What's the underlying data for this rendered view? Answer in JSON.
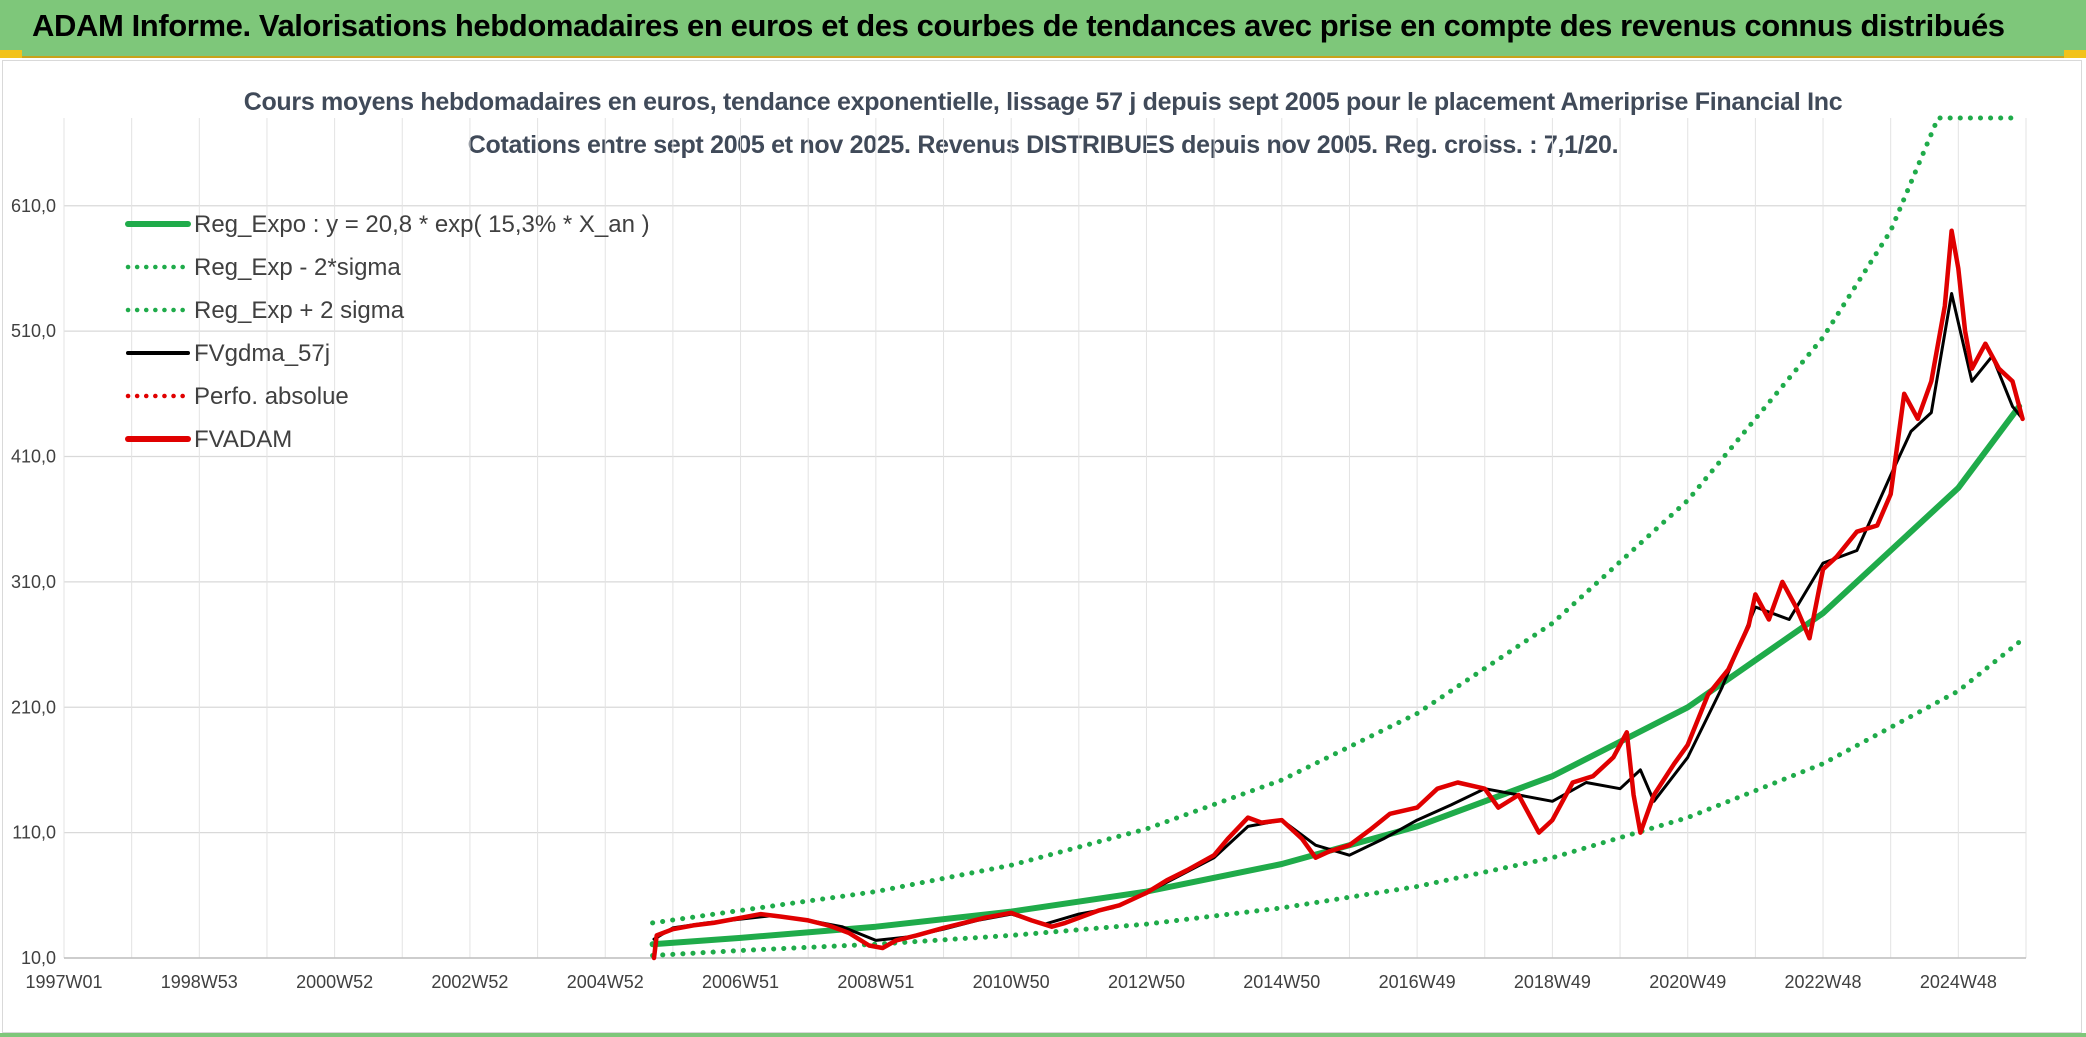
{
  "header": {
    "title": "ADAM Informe. Valorisations hebdomadaires en euros et des courbes de tendances avec prise en compte des revenus connus distribués"
  },
  "chart_data": {
    "type": "line",
    "title": "Cours moyens hebdomadaires en euros, tendance exponentielle, lissage 57 j depuis sept 2005 pour le placement Ameriprise Financial Inc",
    "subtitle": "Cotations entre sept 2005 et nov 2025. Revenus DISTRIBUES depuis nov 2005. Reg. croiss. : 7,1/20.",
    "xlabel": "",
    "ylabel": "",
    "x_ticks": [
      "1997W01",
      "1998W53",
      "2000W52",
      "2002W52",
      "2004W52",
      "2006W51",
      "2008W51",
      "2010W50",
      "2012W50",
      "2014W50",
      "2016W49",
      "2018W49",
      "2020W49",
      "2022W48",
      "2024W48"
    ],
    "y_ticks": [
      "10,0",
      "110,0",
      "210,0",
      "310,0",
      "410,0",
      "510,0",
      "610,0"
    ],
    "ylim": [
      10,
      680
    ],
    "xlim": [
      1997.0,
      2026.0
    ],
    "grid": true,
    "legend_position": "top-left",
    "series": [
      {
        "name": "Reg_Expo : y = 20,8 * exp( 15,3% *  X_an )",
        "color": "#1fab4a",
        "style": "solid",
        "x": [
          2005.7,
          2007,
          2009,
          2011,
          2013,
          2015,
          2017,
          2019,
          2021,
          2023,
          2025,
          2025.9
        ],
        "y": [
          21,
          26,
          35,
          47,
          63,
          85,
          115,
          155,
          210,
          285,
          385,
          450
        ]
      },
      {
        "name": "Reg_Exp - 2*sigma",
        "color": "#1fab4a",
        "style": "dotted",
        "x": [
          2005.7,
          2007,
          2009,
          2011,
          2013,
          2015,
          2017,
          2019,
          2021,
          2023,
          2025,
          2025.9
        ],
        "y": [
          12,
          16,
          21,
          28,
          37,
          50,
          67,
          90,
          122,
          165,
          223,
          262
        ]
      },
      {
        "name": "Reg_Exp + 2 sigma",
        "color": "#1fab4a",
        "style": "dotted",
        "x": [
          2005.7,
          2007,
          2009,
          2011,
          2013,
          2015,
          2017,
          2019,
          2021,
          2023,
          2024.0,
          2024.7,
          2025.9
        ],
        "y": [
          38,
          48,
          63,
          84,
          113,
          152,
          205,
          277,
          375,
          505,
          590,
          680,
          680
        ]
      },
      {
        "name": "FVgdma_57j",
        "color": "#000000",
        "style": "solid",
        "x": [
          2005.72,
          2006.0,
          2006.5,
          2007.0,
          2007.5,
          2008.0,
          2008.5,
          2009.0,
          2009.5,
          2010.0,
          2010.5,
          2011.0,
          2011.5,
          2012.0,
          2012.5,
          2013.0,
          2013.5,
          2014.0,
          2014.5,
          2015.0,
          2015.5,
          2016.0,
          2016.5,
          2017.0,
          2017.5,
          2018.0,
          2018.5,
          2019.0,
          2019.5,
          2020.0,
          2020.3,
          2020.5,
          2021.0,
          2021.5,
          2022.0,
          2022.5,
          2023.0,
          2023.5,
          2024.0,
          2024.3,
          2024.6,
          2024.9,
          2025.2,
          2025.5,
          2025.8,
          2025.95
        ],
        "y": [
          25,
          34,
          38,
          41,
          44,
          40,
          35,
          24,
          27,
          33,
          40,
          45,
          37,
          45,
          50,
          62,
          76,
          90,
          115,
          120,
          100,
          92,
          105,
          120,
          132,
          145,
          140,
          135,
          150,
          145,
          160,
          135,
          170,
          225,
          290,
          280,
          325,
          335,
          395,
          430,
          445,
          540,
          470,
          490,
          450,
          440
        ]
      },
      {
        "name": "Perfo. absolue",
        "color": "#e00000",
        "style": "dotted",
        "x": [],
        "y": []
      },
      {
        "name": "FVADAM",
        "color": "#e00000",
        "style": "solid",
        "x": [
          2005.72,
          2005.76,
          2006.0,
          2006.3,
          2006.6,
          2007.0,
          2007.3,
          2007.6,
          2008.0,
          2008.3,
          2008.6,
          2008.9,
          2009.1,
          2009.3,
          2009.6,
          2010.0,
          2010.3,
          2010.6,
          2011.0,
          2011.3,
          2011.6,
          2011.8,
          2012.0,
          2012.3,
          2012.6,
          2013.0,
          2013.3,
          2013.6,
          2014.0,
          2014.2,
          2014.5,
          2014.7,
          2015.0,
          2015.3,
          2015.5,
          2015.7,
          2016.0,
          2016.3,
          2016.6,
          2017.0,
          2017.3,
          2017.6,
          2018.0,
          2018.2,
          2018.5,
          2018.8,
          2019.0,
          2019.3,
          2019.6,
          2019.9,
          2020.1,
          2020.2,
          2020.3,
          2020.5,
          2020.8,
          2021.0,
          2021.3,
          2021.6,
          2021.9,
          2022.0,
          2022.2,
          2022.4,
          2022.6,
          2022.8,
          2023.0,
          2023.2,
          2023.5,
          2023.8,
          2024.0,
          2024.2,
          2024.4,
          2024.6,
          2024.8,
          2024.9,
          2025.0,
          2025.1,
          2025.2,
          2025.4,
          2025.6,
          2025.8,
          2025.95
        ],
        "y": [
          10,
          28,
          33,
          36,
          38,
          42,
          45,
          43,
          40,
          36,
          30,
          20,
          18,
          24,
          28,
          34,
          38,
          42,
          46,
          40,
          35,
          38,
          42,
          48,
          52,
          62,
          72,
          80,
          92,
          105,
          122,
          118,
          120,
          105,
          90,
          95,
          100,
          112,
          125,
          130,
          145,
          150,
          145,
          130,
          140,
          110,
          120,
          150,
          155,
          170,
          190,
          140,
          110,
          140,
          165,
          180,
          220,
          240,
          275,
          300,
          280,
          310,
          290,
          265,
          320,
          330,
          350,
          355,
          380,
          460,
          440,
          470,
          530,
          590,
          560,
          510,
          480,
          500,
          480,
          470,
          440
        ]
      }
    ]
  }
}
